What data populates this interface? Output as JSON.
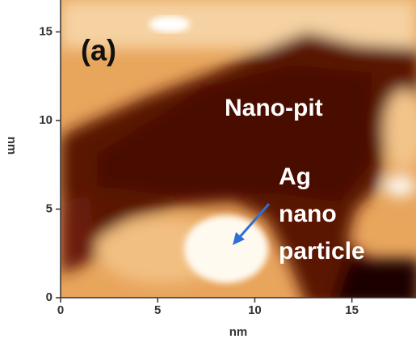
{
  "panel_label": "(a)",
  "annotations": [
    "Nano-pit",
    "Ag",
    "nano",
    "particle"
  ],
  "x_axis": {
    "label": "nm",
    "lim": [
      0,
      18.3
    ],
    "ticks": [
      0,
      5,
      10,
      15
    ]
  },
  "y_axis": {
    "label": "nm",
    "lim": [
      0,
      16.8
    ],
    "ticks": [
      0,
      5,
      10,
      15
    ]
  }
}
